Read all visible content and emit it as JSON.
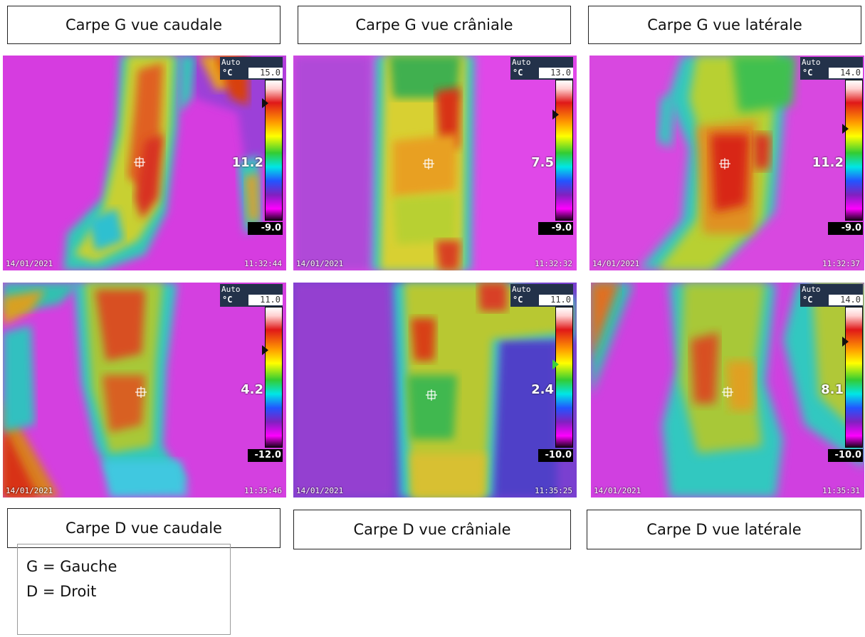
{
  "labels_top": [
    "Carpe G vue caudale",
    "Carpe G vue crâniale",
    "Carpe G vue latérale"
  ],
  "labels_bottom": [
    "Carpe D vue caudale",
    "Carpe D vue crâniale",
    "Carpe D vue latérale"
  ],
  "legend": {
    "line1": "G = Gauche",
    "line2": "D = Droit"
  },
  "images": [
    {
      "mode": "Auto",
      "unit": "°C",
      "max": "15.0",
      "min": "-9.0",
      "spot": "11.2",
      "date": "14/01/2021",
      "time": "11:32:44",
      "marker": "black"
    },
    {
      "mode": "Auto",
      "unit": "°C",
      "max": "13.0",
      "min": "-9.0",
      "spot": "7.5",
      "date": "14/01/2021",
      "time": "11:32:32",
      "marker": "black"
    },
    {
      "mode": "Auto",
      "unit": "°C",
      "max": "14.0",
      "min": "-9.0",
      "spot": "11.2",
      "date": "14/01/2021",
      "time": "11:32:37",
      "marker": "black"
    },
    {
      "mode": "Auto",
      "unit": "°C",
      "max": "11.0",
      "min": "-12.0",
      "spot": "4.2",
      "date": "14/01/2021",
      "time": "11:35:46",
      "marker": "black"
    },
    {
      "mode": "Auto",
      "unit": "°C",
      "max": "11.0",
      "min": "-10.0",
      "spot": "2.4",
      "date": "14/01/2021",
      "time": "11:35:25",
      "marker": "green"
    },
    {
      "mode": "Auto",
      "unit": "°C",
      "max": "14.0",
      "min": "-10.0",
      "spot": "8.1",
      "date": "14/01/2021",
      "time": "11:35:31",
      "marker": "black"
    }
  ],
  "colors": {
    "background_magenta": "#e040e8",
    "limb_yellow": "#e6d020",
    "limb_red": "#d83010",
    "limb_green": "#40c040",
    "edge_cyan": "#30d0c0"
  }
}
